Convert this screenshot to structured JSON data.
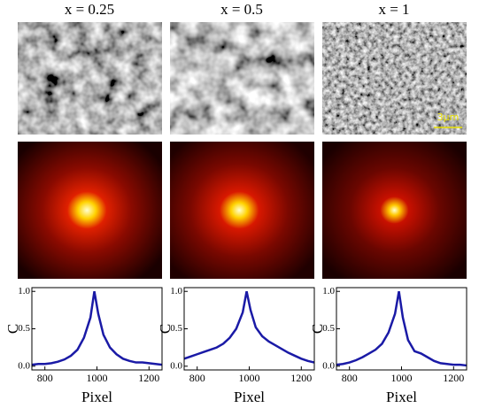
{
  "scale_bar": "3μm",
  "chart_data": [
    {
      "type": "line",
      "title": "x = 0.25",
      "xlabel": "Pixel",
      "ylabel": "C",
      "x": [
        750,
        775,
        800,
        825,
        850,
        875,
        900,
        925,
        950,
        975,
        990,
        1005,
        1025,
        1050,
        1075,
        1100,
        1125,
        1150,
        1175,
        1200,
        1225,
        1250
      ],
      "series": [
        {
          "color": "#1a1aa6",
          "values": [
            0.02,
            0.03,
            0.03,
            0.04,
            0.06,
            0.09,
            0.14,
            0.22,
            0.38,
            0.65,
            1.0,
            0.7,
            0.42,
            0.25,
            0.16,
            0.1,
            0.07,
            0.05,
            0.05,
            0.04,
            0.03,
            0.02
          ]
        }
      ],
      "xlim": [
        750,
        1250
      ],
      "xticks": [
        800,
        1000,
        1200
      ],
      "ylim": [
        -0.05,
        1.05
      ],
      "yticks": [
        {
          "value": 0,
          "label": "0.0"
        },
        0.5,
        {
          "value": 1,
          "label": "1.0"
        }
      ]
    },
    {
      "type": "line",
      "title": "x = 0.5",
      "xlabel": "Pixel",
      "ylabel": "C",
      "x": [
        750,
        775,
        800,
        825,
        850,
        875,
        900,
        925,
        950,
        975,
        990,
        1005,
        1025,
        1050,
        1075,
        1100,
        1125,
        1150,
        1175,
        1200,
        1225,
        1250
      ],
      "series": [
        {
          "color": "#1a1aa6",
          "values": [
            0.1,
            0.13,
            0.16,
            0.19,
            0.22,
            0.25,
            0.3,
            0.38,
            0.5,
            0.72,
            1.0,
            0.75,
            0.52,
            0.4,
            0.33,
            0.28,
            0.23,
            0.18,
            0.14,
            0.1,
            0.07,
            0.05
          ]
        }
      ],
      "xlim": [
        750,
        1250
      ],
      "xticks": [
        800,
        1000,
        1200
      ],
      "ylim": [
        -0.05,
        1.05
      ],
      "yticks": [
        {
          "value": 0,
          "label": "0.0"
        },
        0.5,
        {
          "value": 1,
          "label": "1.0"
        }
      ]
    },
    {
      "type": "line",
      "title": "x = 1",
      "xlabel": "Pixel",
      "ylabel": "C",
      "x": [
        750,
        775,
        800,
        825,
        850,
        875,
        900,
        925,
        950,
        975,
        990,
        1005,
        1025,
        1050,
        1075,
        1100,
        1125,
        1150,
        1175,
        1200,
        1225,
        1250
      ],
      "series": [
        {
          "color": "#1a1aa6",
          "values": [
            0.02,
            0.03,
            0.05,
            0.08,
            0.12,
            0.17,
            0.22,
            0.3,
            0.45,
            0.7,
            1.0,
            0.65,
            0.35,
            0.2,
            0.17,
            0.12,
            0.07,
            0.04,
            0.03,
            0.02,
            0.02,
            0.01
          ]
        }
      ],
      "xlim": [
        750,
        1250
      ],
      "xticks": [
        800,
        1000,
        1200
      ],
      "ylim": [
        -0.05,
        1.05
      ],
      "yticks": [
        {
          "value": 0,
          "label": "0.0"
        },
        0.5,
        {
          "value": 1,
          "label": "1.0"
        }
      ]
    }
  ]
}
